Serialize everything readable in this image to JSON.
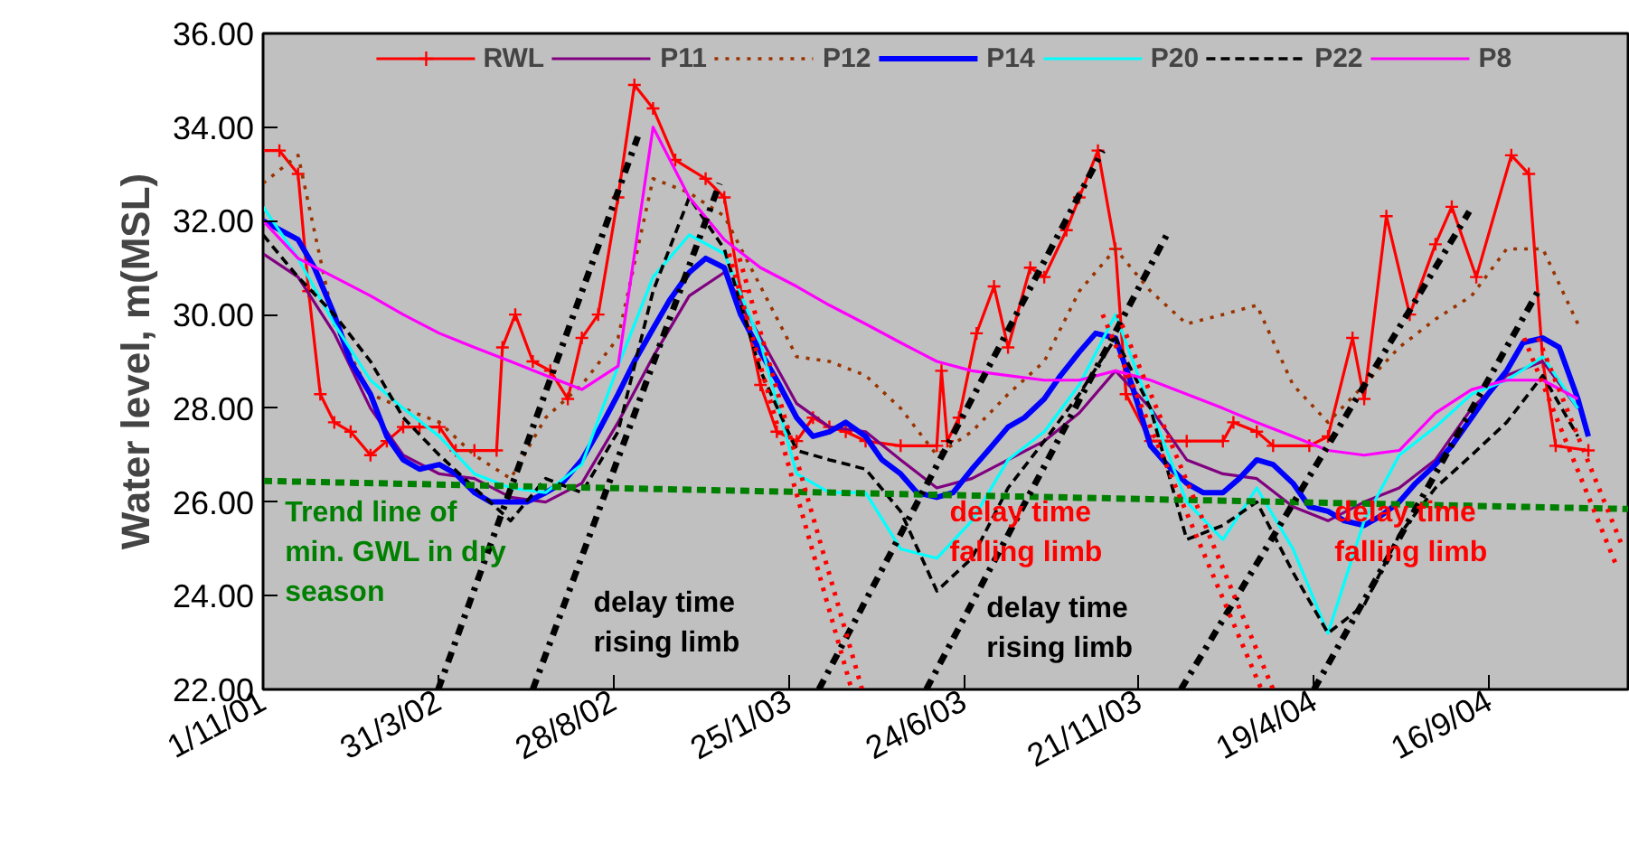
{
  "chart_data": {
    "type": "line",
    "ylabel": "Water level, m(MSL)",
    "xlim": [
      "2001-11-01",
      "2005-01-13"
    ],
    "ylim": [
      22,
      36
    ],
    "yticks": [
      {
        "value": 22,
        "label": "22.00"
      },
      {
        "value": 24,
        "label": "24.00"
      },
      {
        "value": 26,
        "label": "26.00"
      },
      {
        "value": 28,
        "label": "28.00"
      },
      {
        "value": 30,
        "label": "30.00"
      },
      {
        "value": 32,
        "label": "32.00"
      },
      {
        "value": 34,
        "label": "34.00"
      },
      {
        "value": 36,
        "label": "36.00"
      }
    ],
    "xticks": [
      {
        "value": "2001-11-01",
        "label": "1/11/01"
      },
      {
        "value": "2002-03-31",
        "label": "31/3/02"
      },
      {
        "value": "2002-08-28",
        "label": "28/8/02"
      },
      {
        "value": "2003-01-25",
        "label": "25/1/03"
      },
      {
        "value": "2003-06-24",
        "label": "24/6/03"
      },
      {
        "value": "2003-11-21",
        "label": "21/11/03"
      },
      {
        "value": "2004-04-19",
        "label": "19/4/04"
      },
      {
        "value": "2004-09-16",
        "label": "16/9/04"
      }
    ],
    "x": [
      "2001-11",
      "2001-12",
      "2002-01",
      "2002-02",
      "2002-03",
      "2002-04",
      "2002-05",
      "2002-06",
      "2002-07",
      "2002-08",
      "2002-09",
      "2002-10",
      "2002-11",
      "2002-12",
      "2003-01",
      "2003-02",
      "2003-03",
      "2003-04",
      "2003-05",
      "2003-06",
      "2003-07",
      "2003-08",
      "2003-09",
      "2003-10",
      "2003-11",
      "2003-12",
      "2004-01",
      "2004-02",
      "2004-03",
      "2004-04",
      "2004-05",
      "2004-06",
      "2004-07",
      "2004-08",
      "2004-09",
      "2004-10",
      "2004-11",
      "2004-12"
    ],
    "grid": false,
    "legend": "top",
    "series": [
      {
        "name": "RWL",
        "color": "#ff0000",
        "marker": "cross",
        "x": [
          "2001-11-01",
          "2001-11-15",
          "2001-12-01",
          "2001-12-10",
          "2001-12-20",
          "2002-01-01",
          "2002-01-15",
          "2002-02-01",
          "2002-02-15",
          "2002-03-01",
          "2002-03-15",
          "2002-04-01",
          "2002-04-15",
          "2002-05-01",
          "2002-05-20",
          "2002-05-25",
          "2002-06-05",
          "2002-06-20",
          "2002-07-05",
          "2002-07-20",
          "2002-08-01",
          "2002-08-15",
          "2002-09-01",
          "2002-09-15",
          "2002-10-01",
          "2002-10-20",
          "2002-11-15",
          "2002-12-01",
          "2002-12-15",
          "2003-01-01",
          "2003-01-15",
          "2003-02-01",
          "2003-02-15",
          "2003-03-01",
          "2003-03-15",
          "2003-04-01",
          "2003-05-01",
          "2003-06-01",
          "2003-06-05",
          "2003-06-10",
          "2003-06-20",
          "2003-07-05",
          "2003-07-20",
          "2003-08-01",
          "2003-08-20",
          "2003-09-01",
          "2003-09-20",
          "2003-10-01",
          "2003-10-17",
          "2003-11-01",
          "2003-11-10",
          "2003-12-01",
          "2004-01-01",
          "2004-02-01",
          "2004-02-10",
          "2004-03-01",
          "2004-03-15",
          "2004-04-15",
          "2004-05-01",
          "2004-05-22",
          "2004-06-01",
          "2004-06-20",
          "2004-07-10",
          "2004-08-01",
          "2004-08-15",
          "2004-09-05",
          "2004-10-05",
          "2004-10-20",
          "2004-11-01",
          "2004-11-12",
          "2004-12-10"
        ],
        "values": [
          33.5,
          33.5,
          33.0,
          30.5,
          28.3,
          27.7,
          27.5,
          27.0,
          27.3,
          27.6,
          27.6,
          27.6,
          27.1,
          27.1,
          27.1,
          29.3,
          30.0,
          29.0,
          28.8,
          28.2,
          29.5,
          30.0,
          32.5,
          34.9,
          34.4,
          33.3,
          32.9,
          32.5,
          30.5,
          28.5,
          27.5,
          27.3,
          27.8,
          27.6,
          27.5,
          27.3,
          27.2,
          27.2,
          28.8,
          27.3,
          27.8,
          29.6,
          30.6,
          29.3,
          31.0,
          30.8,
          31.8,
          32.5,
          33.5,
          31.4,
          28.3,
          27.3,
          27.3,
          27.3,
          27.7,
          27.5,
          27.2,
          27.2,
          27.4,
          29.5,
          28.2,
          32.1,
          30.0,
          31.5,
          32.3,
          30.8,
          33.4,
          33.0,
          29.0,
          27.2,
          27.1
        ]
      },
      {
        "name": "P11",
        "color": "#800080",
        "values": [
          31.3,
          30.8,
          29.6,
          28.0,
          27.0,
          26.6,
          26.5,
          26.1,
          26.0,
          26.4,
          27.7,
          29.1,
          30.4,
          30.9,
          29.5,
          28.1,
          27.6,
          27.5,
          26.9,
          26.3,
          26.5,
          26.9,
          27.3,
          27.9,
          28.8,
          28.0,
          26.9,
          26.6,
          26.5,
          25.9,
          25.6,
          26.0,
          26.3,
          26.9,
          28.0,
          28.7,
          29.0,
          28.0
        ]
      },
      {
        "name": "P12",
        "color": "#993300",
        "line_style": "dotted",
        "values": [
          32.8,
          33.4,
          29.8,
          28.3,
          28.0,
          27.7,
          27.0,
          26.5,
          27.8,
          28.5,
          29.5,
          32.9,
          32.6,
          32.1,
          30.6,
          29.1,
          29.0,
          28.7,
          28.0,
          27.0,
          27.5,
          28.3,
          29.0,
          30.5,
          31.4,
          30.5,
          29.8,
          30.0,
          30.2,
          28.5,
          27.7,
          28.5,
          29.3,
          29.9,
          30.4,
          31.4,
          31.4,
          29.8
        ]
      },
      {
        "name": "P14",
        "color": "#0000ff",
        "x": [
          "2001-11-01",
          "2001-12-01",
          "2001-12-15",
          "2002-01-01",
          "2002-01-15",
          "2002-02-01",
          "2002-02-15",
          "2002-03-01",
          "2002-03-15",
          "2002-04-01",
          "2002-04-15",
          "2002-05-01",
          "2002-05-15",
          "2002-06-01",
          "2002-06-15",
          "2002-07-01",
          "2002-07-15",
          "2002-08-01",
          "2002-08-15",
          "2002-09-01",
          "2002-09-15",
          "2002-10-01",
          "2002-10-15",
          "2002-11-01",
          "2002-11-15",
          "2002-12-01",
          "2002-12-15",
          "2003-01-01",
          "2003-01-15",
          "2003-02-01",
          "2003-02-15",
          "2003-03-01",
          "2003-03-15",
          "2003-04-01",
          "2003-04-15",
          "2003-05-01",
          "2003-05-15",
          "2003-06-01",
          "2003-06-15",
          "2003-07-01",
          "2003-07-15",
          "2003-08-01",
          "2003-08-15",
          "2003-09-01",
          "2003-09-15",
          "2003-10-01",
          "2003-10-15",
          "2003-11-01",
          "2003-11-15",
          "2003-12-01",
          "2003-12-15",
          "2004-01-01",
          "2004-01-15",
          "2004-02-01",
          "2004-02-15",
          "2004-03-01",
          "2004-03-15",
          "2004-04-01",
          "2004-04-15",
          "2004-05-01",
          "2004-05-15",
          "2004-06-01",
          "2004-06-15",
          "2004-07-01",
          "2004-07-15",
          "2004-08-01",
          "2004-08-15",
          "2004-09-01",
          "2004-09-15",
          "2004-10-01",
          "2004-10-15",
          "2004-11-01",
          "2004-11-15",
          "2004-12-01",
          "2004-12-10"
        ],
        "values": [
          32.0,
          31.6,
          31.0,
          30.0,
          29.0,
          28.3,
          27.4,
          26.9,
          26.7,
          26.8,
          26.6,
          26.2,
          26.0,
          26.0,
          26.0,
          26.2,
          26.4,
          26.9,
          27.5,
          28.3,
          29.0,
          29.7,
          30.3,
          30.9,
          31.2,
          31.0,
          30.0,
          29.2,
          28.6,
          27.8,
          27.4,
          27.5,
          27.7,
          27.4,
          26.9,
          26.6,
          26.2,
          26.1,
          26.2,
          26.7,
          27.1,
          27.6,
          27.8,
          28.2,
          28.7,
          29.2,
          29.6,
          29.5,
          28.5,
          27.2,
          26.8,
          26.4,
          26.2,
          26.2,
          26.5,
          26.9,
          26.8,
          26.4,
          25.9,
          25.8,
          25.6,
          25.5,
          25.7,
          26.0,
          26.4,
          26.8,
          27.2,
          27.8,
          28.3,
          28.8,
          29.4,
          29.5,
          29.3,
          28.2,
          27.4
        ]
      },
      {
        "name": "P20",
        "color": "#00ffff",
        "values": [
          32.3,
          31.2,
          29.8,
          28.6,
          28.0,
          27.4,
          26.6,
          26.3,
          26.2,
          26.8,
          28.9,
          30.8,
          31.7,
          31.3,
          29.4,
          26.6,
          26.2,
          26.2,
          25.0,
          24.8,
          25.6,
          26.9,
          27.5,
          28.5,
          30.0,
          28.0,
          26.0,
          25.2,
          26.3,
          25.0,
          23.2,
          25.6,
          27.0,
          27.6,
          28.3,
          28.6,
          29.1,
          28.0
        ]
      },
      {
        "name": "P22",
        "color": "#000000",
        "line_style": "dashed",
        "values": [
          31.7,
          30.8,
          30.0,
          29.0,
          27.8,
          27.0,
          26.3,
          25.6,
          26.5,
          26.2,
          27.5,
          30.5,
          32.5,
          31.4,
          28.8,
          27.1,
          26.9,
          26.7,
          25.8,
          24.1,
          24.8,
          26.3,
          27.3,
          28.3,
          29.5,
          28.0,
          25.2,
          25.5,
          26.0,
          24.5,
          23.2,
          23.8,
          25.3,
          26.3,
          27.0,
          27.7,
          28.7,
          27.4
        ]
      },
      {
        "name": "P8",
        "color": "#ff00ff",
        "values": [
          32.0,
          31.2,
          30.8,
          30.4,
          30.0,
          29.6,
          29.3,
          29.0,
          28.7,
          28.4,
          28.9,
          34.0,
          32.5,
          31.6,
          31.0,
          30.6,
          30.2,
          29.8,
          29.4,
          29.0,
          28.8,
          28.7,
          28.6,
          28.6,
          28.8,
          28.6,
          28.3,
          28.0,
          27.7,
          27.4,
          27.1,
          27.0,
          27.1,
          27.9,
          28.4,
          28.6,
          28.6,
          28.2
        ]
      },
      {
        "color": "#008000",
        "line_style": "dashed",
        "x": [
          "2001-11-01",
          "2005-01-13"
        ],
        "values": [
          26.45,
          25.85
        ]
      },
      {
        "color": "#000000",
        "line_style": "dashdot",
        "x": [
          "2002-03-31",
          "2002-09-18"
        ],
        "values": [
          22.0,
          33.8
        ]
      },
      {
        "color": "#000000",
        "line_style": "dashdot",
        "x": [
          "2002-06-20",
          "2002-11-27"
        ],
        "values": [
          22.0,
          32.8
        ]
      },
      {
        "color": "#000000",
        "line_style": "dashdot",
        "x": [
          "2003-02-20",
          "2003-10-21"
        ],
        "values": [
          22.0,
          33.5
        ]
      },
      {
        "color": "#000000",
        "line_style": "dashdot",
        "x": [
          "2003-05-23",
          "2003-12-17"
        ],
        "values": [
          22.0,
          31.8
        ]
      },
      {
        "color": "#000000",
        "line_style": "dashdot",
        "x": [
          "2003-12-27",
          "2004-08-30"
        ],
        "values": [
          22.0,
          32.2
        ]
      },
      {
        "color": "#000000",
        "line_style": "dashdot",
        "x": [
          "2004-04-19",
          "2004-10-28"
        ],
        "values": [
          22.0,
          30.5
        ]
      },
      {
        "color": "#ff0000",
        "line_style": "dotted",
        "x": [
          "2002-12-05",
          "2003-03-20"
        ],
        "values": [
          31.3,
          22.0
        ]
      },
      {
        "color": "#ff0000",
        "line_style": "dotted",
        "x": [
          "2002-12-14",
          "2003-03-29"
        ],
        "values": [
          31.2,
          22.0
        ]
      },
      {
        "color": "#ff0000",
        "line_style": "dotted",
        "x": [
          "2003-10-21",
          "2004-03-05"
        ],
        "values": [
          30.0,
          22.0
        ]
      },
      {
        "color": "#ff0000",
        "line_style": "dotted",
        "x": [
          "2003-11-03",
          "2004-03-15"
        ],
        "values": [
          30.0,
          22.0
        ]
      },
      {
        "color": "#ff0000",
        "line_style": "dotted",
        "x": [
          "2004-10-16",
          "2005-01-02"
        ],
        "values": [
          29.5,
          24.7
        ]
      },
      {
        "color": "#ff0000",
        "line_style": "dotted",
        "x": [
          "2004-10-28",
          "2005-01-09"
        ],
        "values": [
          29.5,
          25.0
        ]
      }
    ],
    "annotations": [
      "Trend line of\nmin. GWL in dry\nseason",
      "delay time\nrising limb",
      "delay time\nfalling limb",
      "delay time\nrising limb",
      "delay time\nfalling limb"
    ]
  }
}
